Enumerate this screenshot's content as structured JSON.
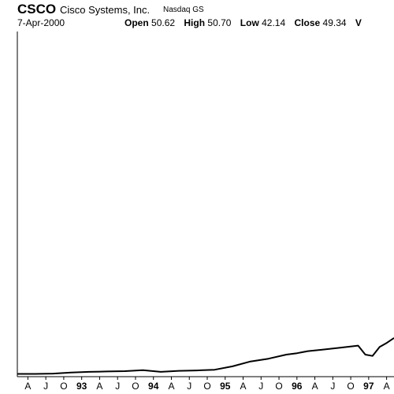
{
  "header": {
    "ticker": "CSCO",
    "company": "Cisco Systems, Inc.",
    "exchange": "Nasdaq GS",
    "date": "7-Apr-2000",
    "open_label": "Open",
    "open_value": "50.62",
    "high_label": "High",
    "high_value": "50.70",
    "low_label": "Low",
    "low_value": "42.14",
    "close_label": "Close",
    "close_value": "49.34",
    "volume_label_partial": "V"
  },
  "chart_data": {
    "type": "line",
    "title": "",
    "xlabel": "",
    "ylabel": "",
    "x_ticks": [
      {
        "label": "A",
        "bold": false
      },
      {
        "label": "J",
        "bold": false
      },
      {
        "label": "O",
        "bold": false
      },
      {
        "label": "93",
        "bold": true
      },
      {
        "label": "A",
        "bold": false
      },
      {
        "label": "J",
        "bold": false
      },
      {
        "label": "O",
        "bold": false
      },
      {
        "label": "94",
        "bold": true
      },
      {
        "label": "A",
        "bold": false
      },
      {
        "label": "J",
        "bold": false
      },
      {
        "label": "O",
        "bold": false
      },
      {
        "label": "95",
        "bold": true
      },
      {
        "label": "A",
        "bold": false
      },
      {
        "label": "J",
        "bold": false
      },
      {
        "label": "O",
        "bold": false
      },
      {
        "label": "96",
        "bold": true
      },
      {
        "label": "A",
        "bold": false
      },
      {
        "label": "J",
        "bold": false
      },
      {
        "label": "O",
        "bold": false
      },
      {
        "label": "97",
        "bold": true
      },
      {
        "label": "A",
        "bold": false
      }
    ],
    "series": [
      {
        "x": [
          1992.25,
          1992.5,
          1992.75,
          1993.0,
          1993.25,
          1993.5,
          1993.75,
          1994.0,
          1994.25,
          1994.5,
          1994.75,
          1995.0,
          1995.25,
          1995.5,
          1995.75,
          1996.0,
          1996.15,
          1996.3,
          1996.5,
          1996.75,
          1997.0,
          1997.1,
          1997.2,
          1997.3,
          1997.4,
          1997.5
        ],
        "values": [
          0.4,
          0.4,
          0.45,
          0.6,
          0.7,
          0.75,
          0.8,
          0.95,
          0.7,
          0.85,
          0.9,
          1.0,
          1.5,
          2.2,
          2.6,
          3.2,
          3.4,
          3.7,
          3.9,
          4.2,
          4.5,
          3.2,
          3.0,
          4.3,
          4.9,
          5.6
        ]
      }
    ]
  }
}
